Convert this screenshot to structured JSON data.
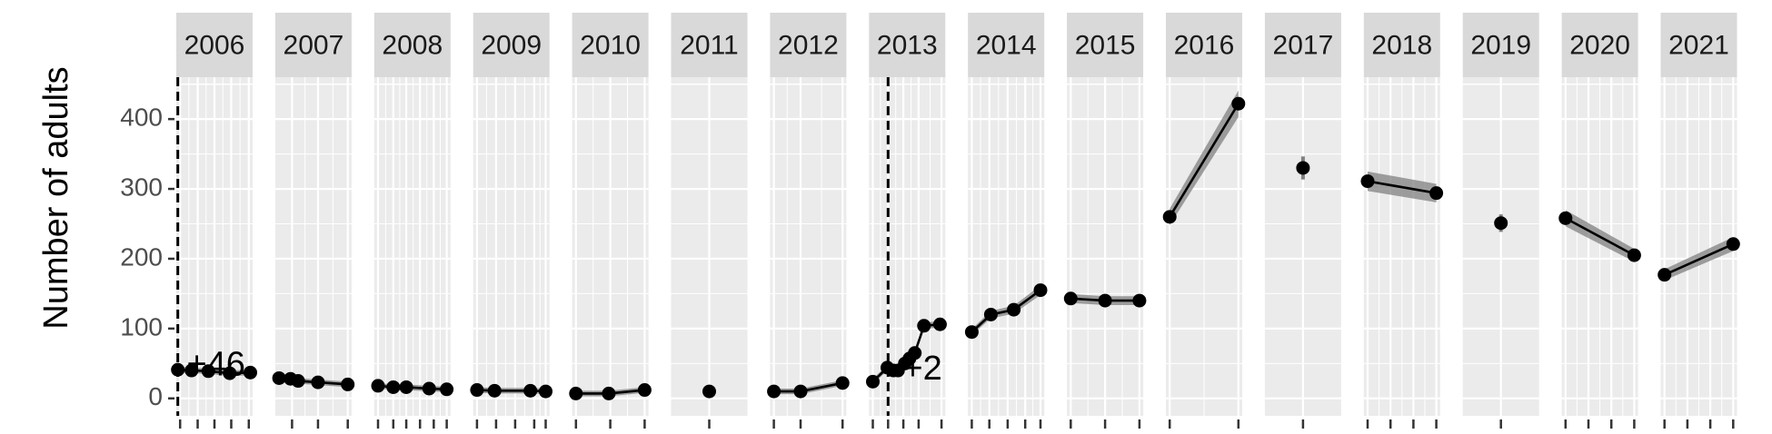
{
  "chart_data": {
    "type": "line",
    "ylabel": "Number of adults",
    "ylim": [
      -25,
      460
    ],
    "y_ticks": [
      0,
      100,
      200,
      300,
      400
    ],
    "y_tick_labels": [
      "0",
      "100",
      "200",
      "300",
      "400"
    ],
    "grid": true,
    "legend": "none",
    "colors": {
      "panel_bg": "#ebebeb",
      "strip_bg": "#d9d9d9",
      "grid": "#ffffff",
      "line": "#000000",
      "ribbon": "#808080",
      "tick": "#333333"
    },
    "panels": [
      {
        "label": "2006",
        "xlim": [
          0,
          1
        ],
        "x_ticks": [
          0.05,
          0.28,
          0.5,
          0.72,
          0.95
        ],
        "points": [
          {
            "x": 0.02,
            "y": 41
          },
          {
            "x": 0.2,
            "y": 40
          },
          {
            "x": 0.42,
            "y": 39
          },
          {
            "x": 0.7,
            "y": 36
          },
          {
            "x": 0.97,
            "y": 37
          }
        ],
        "vline_x": 0.02,
        "annotation": {
          "text": "+46",
          "x": 0.52,
          "y": 46
        }
      },
      {
        "label": "2007",
        "xlim": [
          0,
          1
        ],
        "x_ticks": [
          0.22,
          0.56,
          0.95
        ],
        "points": [
          {
            "x": 0.05,
            "y": 29
          },
          {
            "x": 0.2,
            "y": 28
          },
          {
            "x": 0.3,
            "y": 25
          },
          {
            "x": 0.56,
            "y": 23
          },
          {
            "x": 0.95,
            "y": 20
          }
        ]
      },
      {
        "label": "2008",
        "xlim": [
          0,
          1
        ],
        "x_ticks": [
          0.05,
          0.25,
          0.42,
          0.6,
          0.78,
          0.95
        ],
        "points": [
          {
            "x": 0.05,
            "y": 18
          },
          {
            "x": 0.25,
            "y": 16
          },
          {
            "x": 0.42,
            "y": 16
          },
          {
            "x": 0.72,
            "y": 14
          },
          {
            "x": 0.95,
            "y": 13
          }
        ]
      },
      {
        "label": "2009",
        "xlim": [
          0,
          1
        ],
        "x_ticks": [
          0.05,
          0.3,
          0.55,
          0.8,
          0.95
        ],
        "points": [
          {
            "x": 0.05,
            "y": 12
          },
          {
            "x": 0.28,
            "y": 11
          },
          {
            "x": 0.75,
            "y": 11
          },
          {
            "x": 0.95,
            "y": 10
          }
        ]
      },
      {
        "label": "2010",
        "xlim": [
          0,
          1
        ],
        "x_ticks": [
          0.05,
          0.5,
          0.95
        ],
        "points": [
          {
            "x": 0.05,
            "y": 7
          },
          {
            "x": 0.48,
            "y": 7
          },
          {
            "x": 0.95,
            "y": 12
          }
        ]
      },
      {
        "label": "2011",
        "xlim": [
          0,
          1
        ],
        "x_ticks": [
          0.5
        ],
        "points": [
          {
            "x": 0.5,
            "y": 10
          }
        ]
      },
      {
        "label": "2012",
        "xlim": [
          0,
          1
        ],
        "x_ticks": [
          0.05,
          0.4,
          0.95
        ],
        "points": [
          {
            "x": 0.05,
            "y": 10
          },
          {
            "x": 0.4,
            "y": 10
          },
          {
            "x": 0.95,
            "y": 22
          }
        ]
      },
      {
        "label": "2013",
        "xlim": [
          0,
          1
        ],
        "x_ticks": [
          0.05,
          0.25,
          0.45,
          0.65,
          0.95
        ],
        "points": [
          {
            "x": 0.05,
            "y": 24
          },
          {
            "x": 0.24,
            "y": 44
          },
          {
            "x": 0.32,
            "y": 40
          },
          {
            "x": 0.38,
            "y": 40
          },
          {
            "x": 0.47,
            "y": 50
          },
          {
            "x": 0.53,
            "y": 57
          },
          {
            "x": 0.6,
            "y": 65
          },
          {
            "x": 0.72,
            "y": 104
          },
          {
            "x": 0.93,
            "y": 106
          }
        ],
        "vline_x": 0.25,
        "annotation": {
          "text": "+2",
          "x": 0.7,
          "y": 40
        }
      },
      {
        "label": "2014",
        "xlim": [
          0,
          1
        ],
        "x_ticks": [
          0.05,
          0.28,
          0.52,
          0.75,
          0.95
        ],
        "points": [
          {
            "x": 0.05,
            "y": 95
          },
          {
            "x": 0.3,
            "y": 120
          },
          {
            "x": 0.6,
            "y": 127
          },
          {
            "x": 0.95,
            "y": 155
          }
        ]
      },
      {
        "label": "2015",
        "xlim": [
          0,
          1
        ],
        "x_ticks": [
          0.05,
          0.5,
          0.95
        ],
        "points": [
          {
            "x": 0.05,
            "y": 143
          },
          {
            "x": 0.5,
            "y": 140
          },
          {
            "x": 0.95,
            "y": 140
          }
        ]
      },
      {
        "label": "2016",
        "xlim": [
          0,
          1
        ],
        "x_ticks": [
          0.05,
          0.95
        ],
        "points": [
          {
            "x": 0.05,
            "y": 260
          },
          {
            "x": 0.95,
            "y": 422
          }
        ]
      },
      {
        "label": "2017",
        "xlim": [
          0,
          1
        ],
        "x_ticks": [
          0.5
        ],
        "points": [
          {
            "x": 0.5,
            "y": 330
          }
        ]
      },
      {
        "label": "2018",
        "xlim": [
          0,
          1
        ],
        "x_ticks": [
          0.05,
          0.35,
          0.65,
          0.95
        ],
        "points": [
          {
            "x": 0.05,
            "y": 311
          },
          {
            "x": 0.95,
            "y": 294
          }
        ]
      },
      {
        "label": "2019",
        "xlim": [
          0,
          1
        ],
        "x_ticks": [
          0.5
        ],
        "points": [
          {
            "x": 0.5,
            "y": 251
          }
        ]
      },
      {
        "label": "2020",
        "xlim": [
          0,
          1
        ],
        "x_ticks": [
          0.05,
          0.35,
          0.65,
          0.95
        ],
        "points": [
          {
            "x": 0.05,
            "y": 258
          },
          {
            "x": 0.95,
            "y": 205
          }
        ]
      },
      {
        "label": "2021",
        "xlim": [
          0,
          1
        ],
        "x_ticks": [
          0.05,
          0.35,
          0.65,
          0.95
        ],
        "points": [
          {
            "x": 0.05,
            "y": 177
          },
          {
            "x": 0.95,
            "y": 221
          }
        ]
      }
    ]
  }
}
